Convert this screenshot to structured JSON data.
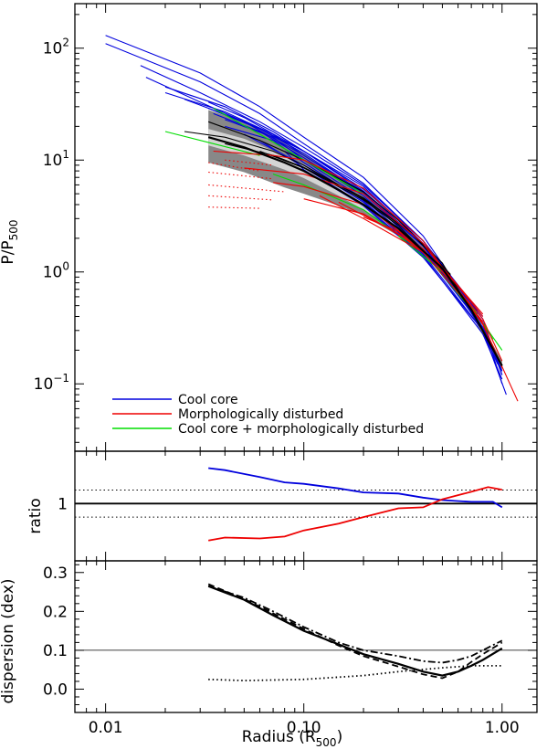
{
  "colors": {
    "cool_core": "#0000dd",
    "disturbed": "#ee0000",
    "both": "#00dd00",
    "mean": "#000000",
    "envelope": "#888888",
    "inner_band": "#d4d4d4"
  },
  "chart_data": [
    {
      "id": "pressure_profiles",
      "type": "line",
      "x_scale": "log",
      "y_scale": "log",
      "xlim": [
        0.007,
        1.5
      ],
      "ylim": [
        0.025,
        250
      ],
      "ylabel": "P/P",
      "ylabel_sub": "500",
      "y_ticks": [
        {
          "value": 0.1,
          "base": "10",
          "exp": "−1"
        },
        {
          "value": 1,
          "base": "10",
          "exp": "0"
        },
        {
          "value": 10,
          "base": "10",
          "exp": "1"
        },
        {
          "value": 100,
          "base": "10",
          "exp": "2"
        }
      ],
      "legend": {
        "position": "bottom-left",
        "entries": [
          {
            "label": "Cool core",
            "color_key": "cool_core"
          },
          {
            "label": "Morphologically disturbed",
            "color_key": "disturbed"
          },
          {
            "label": "Cool core + morphologically disturbed",
            "color_key": "both"
          }
        ]
      },
      "mean_profile": {
        "x": [
          0.033,
          0.05,
          0.08,
          0.1,
          0.15,
          0.2,
          0.3,
          0.5,
          0.7,
          1.0
        ],
        "y": [
          16,
          13,
          9.5,
          8,
          5.4,
          4.0,
          2.45,
          1.08,
          0.46,
          0.145
        ]
      },
      "envelope": {
        "x": [
          0.033,
          0.05,
          0.08,
          0.1,
          0.15,
          0.2,
          0.3,
          0.5,
          0.7,
          1.0
        ],
        "upper": [
          28,
          22,
          14.5,
          11.5,
          7.0,
          5.0,
          2.8,
          1.15,
          0.5,
          0.16
        ],
        "lower": [
          9.5,
          7.8,
          5.7,
          5.0,
          3.9,
          3.2,
          2.1,
          1.0,
          0.42,
          0.13
        ]
      },
      "inner_band": {
        "x": [
          0.033,
          0.05,
          0.08,
          0.1,
          0.15,
          0.2,
          0.3,
          0.5,
          0.7,
          1.0
        ],
        "upper": [
          19,
          15.5,
          11,
          9.2,
          6.1,
          4.5,
          2.6,
          1.11,
          0.48,
          0.152
        ],
        "lower": [
          13.5,
          11,
          8.2,
          6.9,
          4.8,
          3.6,
          2.3,
          1.05,
          0.44,
          0.138
        ]
      },
      "profiles": [
        {
          "class": "cool_core",
          "x": [
            0.01,
            0.03,
            0.06,
            0.1,
            0.2,
            0.4,
            0.8,
            1.0
          ],
          "y": [
            130,
            60,
            30,
            16,
            7,
            2.1,
            0.35,
            0.1
          ]
        },
        {
          "class": "cool_core",
          "x": [
            0.01,
            0.03,
            0.06,
            0.1,
            0.2,
            0.4,
            0.8,
            1.05
          ],
          "y": [
            110,
            50,
            26,
            14,
            6.2,
            1.9,
            0.3,
            0.08
          ]
        },
        {
          "class": "cool_core",
          "x": [
            0.015,
            0.03,
            0.06,
            0.1,
            0.2,
            0.4,
            0.8,
            1.0
          ],
          "y": [
            70,
            40,
            22,
            13,
            6,
            1.9,
            0.38,
            0.12
          ]
        },
        {
          "class": "cool_core",
          "x": [
            0.016,
            0.03,
            0.06,
            0.1,
            0.2,
            0.4,
            0.8,
            1.0
          ],
          "y": [
            55,
            33,
            19,
            12,
            5.8,
            1.8,
            0.35,
            0.12
          ]
        },
        {
          "class": "cool_core",
          "x": [
            0.02,
            0.04,
            0.07,
            0.1,
            0.2,
            0.4,
            0.8
          ],
          "y": [
            45,
            30,
            18,
            12,
            5.5,
            1.9,
            0.4
          ]
        },
        {
          "class": "cool_core",
          "x": [
            0.02,
            0.04,
            0.07,
            0.1,
            0.2,
            0.4,
            0.75
          ],
          "y": [
            40,
            27,
            17,
            11,
            5.2,
            1.8,
            0.45
          ]
        },
        {
          "class": "cool_core",
          "x": [
            0.025,
            0.05,
            0.1,
            0.2,
            0.4,
            0.8,
            1.0
          ],
          "y": [
            35,
            22,
            11,
            5.0,
            1.7,
            0.32,
            0.13
          ]
        },
        {
          "class": "cool_core",
          "x": [
            0.033,
            0.05,
            0.1,
            0.2,
            0.4,
            0.8,
            1.0
          ],
          "y": [
            33,
            24,
            12,
            5.3,
            1.75,
            0.34,
            0.13
          ]
        },
        {
          "class": "cool_core",
          "x": [
            0.033,
            0.06,
            0.1,
            0.2,
            0.4,
            0.8
          ],
          "y": [
            29,
            19,
            11.5,
            5.1,
            1.7,
            0.36
          ]
        },
        {
          "class": "cool_core",
          "x": [
            0.035,
            0.06,
            0.1,
            0.2,
            0.4,
            0.8
          ],
          "y": [
            26,
            18,
            10.5,
            4.8,
            1.6,
            0.34
          ]
        },
        {
          "class": "cool_core",
          "x": [
            0.04,
            0.07,
            0.1,
            0.2,
            0.4,
            0.8
          ],
          "y": [
            23,
            16,
            10,
            4.5,
            1.55,
            0.32
          ]
        },
        {
          "class": "cool_core",
          "x": [
            0.04,
            0.07,
            0.1,
            0.2,
            0.4,
            0.75
          ],
          "y": [
            20,
            15,
            9.5,
            4.3,
            1.5,
            0.42
          ]
        },
        {
          "class": "cool_core",
          "x": [
            0.05,
            0.1,
            0.2,
            0.4,
            0.8,
            0.95
          ],
          "y": [
            17,
            9,
            4.2,
            1.45,
            0.3,
            0.15
          ]
        },
        {
          "class": "cool_core",
          "x": [
            0.06,
            0.1,
            0.2,
            0.4,
            0.8,
            1.0
          ],
          "y": [
            15,
            8.6,
            4.0,
            1.4,
            0.28,
            0.11
          ]
        },
        {
          "class": "cool_core",
          "x": [
            0.08,
            0.1,
            0.2,
            0.4,
            0.8
          ],
          "y": [
            12,
            8.2,
            3.9,
            1.35,
            0.3
          ]
        },
        {
          "class": "mean_sample",
          "x": [
            0.033,
            0.06,
            0.1,
            0.2,
            0.3,
            0.5,
            0.7
          ],
          "y": [
            22,
            15,
            10,
            5.2,
            2.9,
            1.2,
            0.45
          ]
        },
        {
          "class": "mean_sample",
          "x": [
            0.04,
            0.07,
            0.1,
            0.2,
            0.35,
            0.55
          ],
          "y": [
            14,
            11,
            8.6,
            4.6,
            2.2,
            0.95
          ]
        },
        {
          "class": "mean_sample",
          "x": [
            0.025,
            0.04,
            0.07,
            0.1,
            0.2,
            0.3
          ],
          "y": [
            18,
            16,
            12,
            9,
            4.5,
            2.7
          ]
        },
        {
          "class": "mean_sample",
          "x": [
            0.06,
            0.1,
            0.2,
            0.3,
            0.5
          ],
          "y": [
            12,
            8.5,
            4.4,
            2.6,
            1.05
          ]
        },
        {
          "class": "both",
          "x": [
            0.02,
            0.035,
            0.06
          ],
          "y": [
            18,
            14,
            11
          ]
        },
        {
          "class": "both",
          "x": [
            0.035,
            0.06,
            0.1,
            0.2
          ],
          "y": [
            29,
            17,
            10,
            5
          ]
        },
        {
          "class": "both",
          "x": [
            0.07,
            0.1,
            0.2,
            0.4,
            0.8,
            1.0
          ],
          "y": [
            7.5,
            6,
            3.6,
            1.5,
            0.35,
            0.2
          ]
        },
        {
          "class": "both",
          "x": [
            0.3,
            0.5,
            0.7,
            0.9
          ],
          "y": [
            2.1,
            1.0,
            0.5,
            0.25
          ]
        },
        {
          "class": "disturbed",
          "x": [
            0.035,
            0.07,
            0.1,
            0.2,
            0.4,
            0.8,
            1.2
          ],
          "y": [
            12,
            11,
            10,
            5.6,
            1.9,
            0.34,
            0.07
          ]
        },
        {
          "class": "disturbed",
          "x": [
            0.05,
            0.1,
            0.2,
            0.4,
            0.8,
            1.0
          ],
          "y": [
            8.5,
            7.5,
            5.0,
            1.8,
            0.35,
            0.14
          ]
        },
        {
          "class": "disturbed",
          "x": [
            0.07,
            0.1,
            0.2,
            0.4,
            0.7
          ],
          "y": [
            6.3,
            5.8,
            4.0,
            1.6,
            0.5
          ]
        },
        {
          "class": "disturbed",
          "x": [
            0.1,
            0.2,
            0.4,
            0.8,
            1.0
          ],
          "y": [
            4.5,
            3.3,
            1.6,
            0.38,
            0.16
          ]
        },
        {
          "class": "disturbed",
          "x": [
            0.12,
            0.2,
            0.4,
            0.8
          ],
          "y": [
            4.8,
            3.0,
            1.5,
            0.36
          ]
        },
        {
          "class": "disturbed",
          "x": [
            0.15,
            0.3,
            0.5,
            0.8
          ],
          "y": [
            4.2,
            2.2,
            1.1,
            0.4
          ]
        },
        {
          "class": "disturbed",
          "x": [
            0.2,
            0.3,
            0.5,
            0.8
          ],
          "y": [
            3.1,
            2.3,
            1.1,
            0.42
          ]
        },
        {
          "class": "disturbed_inner",
          "x": [
            0.033,
            0.06
          ],
          "y": [
            9.5,
            8.0
          ]
        },
        {
          "class": "disturbed_inner",
          "x": [
            0.033,
            0.07
          ],
          "y": [
            7.8,
            6.8
          ]
        },
        {
          "class": "disturbed_inner",
          "x": [
            0.033,
            0.08
          ],
          "y": [
            6.0,
            5.2
          ]
        },
        {
          "class": "disturbed_inner",
          "x": [
            0.033,
            0.07
          ],
          "y": [
            4.8,
            4.4
          ]
        },
        {
          "class": "disturbed_inner",
          "x": [
            0.033,
            0.06
          ],
          "y": [
            3.8,
            3.7
          ]
        },
        {
          "class": "disturbed_inner",
          "x": [
            0.04,
            0.07
          ],
          "y": [
            10,
            9
          ]
        }
      ]
    },
    {
      "id": "ratio",
      "type": "line",
      "x_scale": "log",
      "y_scale": "log",
      "xlim": [
        0.007,
        1.5
      ],
      "ylim": [
        0.28,
        3.2
      ],
      "ylabel": "ratio",
      "y_ticks": [
        {
          "value": 1,
          "label": "1"
        }
      ],
      "reference_lines": [
        {
          "y": 1,
          "style": "solid"
        },
        {
          "y": 1.35,
          "style": "dotted"
        },
        {
          "y": 0.74,
          "style": "dotted"
        }
      ],
      "series": [
        {
          "color_key": "cool_core",
          "x": [
            0.033,
            0.04,
            0.06,
            0.08,
            0.1,
            0.15,
            0.2,
            0.3,
            0.4,
            0.5,
            0.7,
            0.9,
            1.0
          ],
          "y": [
            2.2,
            2.1,
            1.8,
            1.6,
            1.55,
            1.4,
            1.28,
            1.25,
            1.14,
            1.08,
            1.04,
            1.04,
            0.92
          ]
        },
        {
          "color_key": "disturbed",
          "x": [
            0.033,
            0.04,
            0.06,
            0.08,
            0.1,
            0.15,
            0.2,
            0.3,
            0.4,
            0.5,
            0.7,
            0.85,
            1.0
          ],
          "y": [
            0.44,
            0.47,
            0.46,
            0.48,
            0.55,
            0.64,
            0.74,
            0.9,
            0.92,
            1.1,
            1.3,
            1.44,
            1.36
          ]
        }
      ]
    },
    {
      "id": "dispersion",
      "type": "line",
      "x_scale": "log",
      "y_scale": "linear",
      "xlim": [
        0.007,
        1.5
      ],
      "ylim": [
        -0.06,
        0.33
      ],
      "xlabel": "Radius (R",
      "xlabel_sub": "500",
      "xlabel_close": ")",
      "ylabel": "dispersion (dex)",
      "x_ticks": [
        {
          "value": 0.01,
          "label": "0.01"
        },
        {
          "value": 0.1,
          "label": "0.10"
        },
        {
          "value": 1,
          "label": "1.00"
        }
      ],
      "y_ticks": [
        {
          "value": 0.0,
          "label": "0.0"
        },
        {
          "value": 0.1,
          "label": "0.1"
        },
        {
          "value": 0.2,
          "label": "0.2"
        },
        {
          "value": 0.3,
          "label": "0.3"
        }
      ],
      "reference_lines": [
        {
          "y": 0.1,
          "style": "solid-thin"
        }
      ],
      "series": [
        {
          "style": "solid",
          "x": [
            0.033,
            0.05,
            0.07,
            0.1,
            0.15,
            0.2,
            0.3,
            0.4,
            0.5,
            0.6,
            0.7,
            0.8,
            1.0
          ],
          "y": [
            0.265,
            0.23,
            0.19,
            0.15,
            0.115,
            0.09,
            0.065,
            0.045,
            0.035,
            0.045,
            0.06,
            0.075,
            0.105
          ]
        },
        {
          "style": "dashed",
          "x": [
            0.033,
            0.05,
            0.07,
            0.1,
            0.15,
            0.2,
            0.3,
            0.4,
            0.5,
            0.6,
            0.7,
            0.8,
            1.0
          ],
          "y": [
            0.27,
            0.232,
            0.195,
            0.155,
            0.112,
            0.085,
            0.058,
            0.038,
            0.028,
            0.045,
            0.07,
            0.09,
            0.12
          ]
        },
        {
          "style": "dashdot",
          "x": [
            0.033,
            0.05,
            0.07,
            0.1,
            0.15,
            0.2,
            0.3,
            0.4,
            0.5,
            0.6,
            0.7,
            0.8,
            1.0
          ],
          "y": [
            0.265,
            0.235,
            0.2,
            0.16,
            0.12,
            0.1,
            0.085,
            0.072,
            0.068,
            0.075,
            0.085,
            0.1,
            0.125
          ]
        },
        {
          "style": "dotted",
          "x": [
            0.033,
            0.05,
            0.1,
            0.2,
            0.3,
            0.5,
            0.7,
            1.0
          ],
          "y": [
            0.025,
            0.022,
            0.025,
            0.035,
            0.045,
            0.055,
            0.06,
            0.06
          ]
        }
      ]
    }
  ]
}
